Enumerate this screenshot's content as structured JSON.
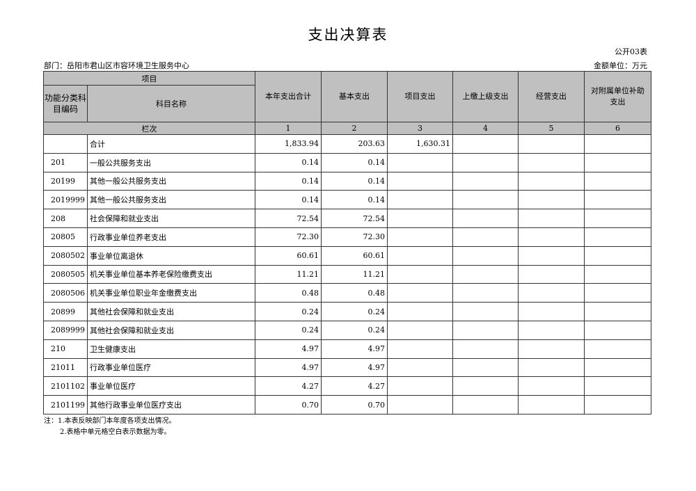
{
  "title": "支出决算表",
  "form_no": "公开03表",
  "department": "部门：岳阳市君山区市容环境卫生服务中心",
  "unit": "金额单位：万元",
  "header": {
    "item": "项目",
    "code": "功能分类科目编码",
    "name": "科目名称",
    "cols": [
      "本年支出合计",
      "基本支出",
      "项目支出",
      "上缴上级支出",
      "经营支出",
      "对附属单位补助支出"
    ],
    "row_label": "栏次",
    "col_nums": [
      "1",
      "2",
      "3",
      "4",
      "5",
      "6"
    ]
  },
  "rows": [
    {
      "code": "",
      "name": "合计",
      "v": [
        "1,833.94",
        "203.63",
        "1,630.31",
        "",
        "",
        ""
      ]
    },
    {
      "code": "201",
      "name": "一般公共服务支出",
      "v": [
        "0.14",
        "0.14",
        "",
        "",
        "",
        ""
      ]
    },
    {
      "code": "20199",
      "name": "其他一般公共服务支出",
      "v": [
        "0.14",
        "0.14",
        "",
        "",
        "",
        ""
      ]
    },
    {
      "code": "2019999",
      "name": "其他一般公共服务支出",
      "v": [
        "0.14",
        "0.14",
        "",
        "",
        "",
        ""
      ]
    },
    {
      "code": "208",
      "name": "社会保障和就业支出",
      "v": [
        "72.54",
        "72.54",
        "",
        "",
        "",
        ""
      ]
    },
    {
      "code": "20805",
      "name": "行政事业单位养老支出",
      "v": [
        "72.30",
        "72.30",
        "",
        "",
        "",
        ""
      ]
    },
    {
      "code": "2080502",
      "name": "事业单位离退休",
      "v": [
        "60.61",
        "60.61",
        "",
        "",
        "",
        ""
      ]
    },
    {
      "code": "2080505",
      "name": "机关事业单位基本养老保险缴费支出",
      "v": [
        "11.21",
        "11.21",
        "",
        "",
        "",
        ""
      ]
    },
    {
      "code": "2080506",
      "name": "机关事业单位职业年金缴费支出",
      "v": [
        "0.48",
        "0.48",
        "",
        "",
        "",
        ""
      ]
    },
    {
      "code": "20899",
      "name": "其他社会保障和就业支出",
      "v": [
        "0.24",
        "0.24",
        "",
        "",
        "",
        ""
      ]
    },
    {
      "code": "2089999",
      "name": "其他社会保障和就业支出",
      "v": [
        "0.24",
        "0.24",
        "",
        "",
        "",
        ""
      ]
    },
    {
      "code": "210",
      "name": "卫生健康支出",
      "v": [
        "4.97",
        "4.97",
        "",
        "",
        "",
        ""
      ]
    },
    {
      "code": "21011",
      "name": "行政事业单位医疗",
      "v": [
        "4.97",
        "4.97",
        "",
        "",
        "",
        ""
      ]
    },
    {
      "code": "2101102",
      "name": "事业单位医疗",
      "v": [
        "4.27",
        "4.27",
        "",
        "",
        "",
        ""
      ]
    },
    {
      "code": "2101199",
      "name": "其他行政事业单位医疗支出",
      "v": [
        "0.70",
        "0.70",
        "",
        "",
        "",
        ""
      ]
    }
  ],
  "notes": [
    "注：1.本表反映部门本年度各项支出情况。",
    "2.表格中单元格空白表示数据为零。"
  ]
}
